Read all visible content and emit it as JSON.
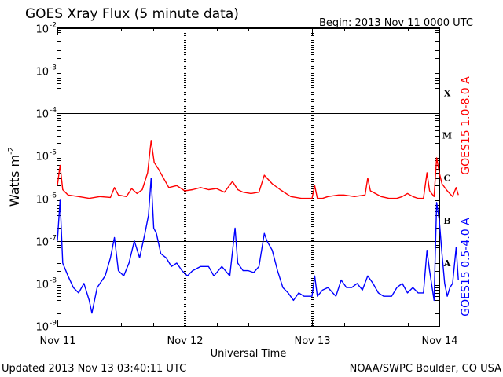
{
  "chart_data": {
    "type": "line",
    "title": "GOES Xray Flux (5 minute data)",
    "begin_label": "Begin:  2013 Nov 11 0000 UTC",
    "xlabel": "Universal Time",
    "ylabel": "Watts m",
    "ylabel_exp": "-2",
    "y_scale": "log",
    "ylim": [
      1e-09,
      0.01
    ],
    "xlim": [
      "2013-11-11 00:00",
      "2013-11-14 00:00"
    ],
    "x_ticks": [
      "Nov 11",
      "Nov 12",
      "Nov 13",
      "Nov 14"
    ],
    "y_ticks": [
      {
        "value": 1e-09,
        "base": "10",
        "exp": "-9"
      },
      {
        "value": 1e-08,
        "base": "10",
        "exp": "-8"
      },
      {
        "value": 1e-07,
        "base": "10",
        "exp": "-7"
      },
      {
        "value": 1e-06,
        "base": "10",
        "exp": "-6"
      },
      {
        "value": 1e-05,
        "base": "10",
        "exp": "-5"
      },
      {
        "value": 0.0001,
        "base": "10",
        "exp": "-4"
      },
      {
        "value": 0.001,
        "base": "10",
        "exp": "-3"
      },
      {
        "value": 0.01,
        "base": "10",
        "exp": "-2"
      }
    ],
    "flare_classes": [
      {
        "label": "A",
        "value": 3e-08
      },
      {
        "label": "B",
        "value": 3e-07
      },
      {
        "label": "C",
        "value": 3e-06
      },
      {
        "label": "M",
        "value": 3e-05
      },
      {
        "label": "X",
        "value": 0.0003
      }
    ],
    "grid": true,
    "series": [
      {
        "name": "GOES15 1.0-8.0 A",
        "color": "#ff0000",
        "points": [
          [
            "2013-11-11 00:00",
            2e-06
          ],
          [
            "2013-11-11 00:30",
            6e-06
          ],
          [
            "2013-11-11 01:00",
            1.6e-06
          ],
          [
            "2013-11-11 02:00",
            1.2e-06
          ],
          [
            "2013-11-11 04:00",
            1.1e-06
          ],
          [
            "2013-11-11 06:00",
            1e-06
          ],
          [
            "2013-11-11 08:00",
            1.1e-06
          ],
          [
            "2013-11-11 10:00",
            1.05e-06
          ],
          [
            "2013-11-11 10:45",
            1.8e-06
          ],
          [
            "2013-11-11 11:30",
            1.2e-06
          ],
          [
            "2013-11-11 13:00",
            1.1e-06
          ],
          [
            "2013-11-11 14:00",
            1.7e-06
          ],
          [
            "2013-11-11 15:00",
            1.3e-06
          ],
          [
            "2013-11-11 16:00",
            1.6e-06
          ],
          [
            "2013-11-11 17:00",
            4e-06
          ],
          [
            "2013-11-11 17:40",
            2.3e-05
          ],
          [
            "2013-11-11 18:15",
            7e-06
          ],
          [
            "2013-11-11 19:00",
            5e-06
          ],
          [
            "2013-11-11 20:00",
            3e-06
          ],
          [
            "2013-11-11 21:00",
            1.8e-06
          ],
          [
            "2013-11-11 22:30",
            2e-06
          ],
          [
            "2013-11-12 00:00",
            1.5e-06
          ],
          [
            "2013-11-12 01:30",
            1.6e-06
          ],
          [
            "2013-11-12 03:00",
            1.8e-06
          ],
          [
            "2013-11-12 04:30",
            1.6e-06
          ],
          [
            "2013-11-12 06:00",
            1.7e-06
          ],
          [
            "2013-11-12 07:30",
            1.4e-06
          ],
          [
            "2013-11-12 09:00",
            2.5e-06
          ],
          [
            "2013-11-12 10:00",
            1.6e-06
          ],
          [
            "2013-11-12 11:00",
            1.4e-06
          ],
          [
            "2013-11-12 12:30",
            1.3e-06
          ],
          [
            "2013-11-12 14:00",
            1.4e-06
          ],
          [
            "2013-11-12 15:00",
            3.5e-06
          ],
          [
            "2013-11-12 16:30",
            2.2e-06
          ],
          [
            "2013-11-12 18:00",
            1.6e-06
          ],
          [
            "2013-11-12 20:00",
            1.1e-06
          ],
          [
            "2013-11-12 22:00",
            1e-06
          ],
          [
            "2013-11-13 00:00",
            1e-06
          ],
          [
            "2013-11-13 00:30",
            2e-06
          ],
          [
            "2013-11-13 01:00",
            1e-06
          ],
          [
            "2013-11-13 02:00",
            1e-06
          ],
          [
            "2013-11-13 03:00",
            1.1e-06
          ],
          [
            "2013-11-13 05:00",
            1.2e-06
          ],
          [
            "2013-11-13 06:00",
            1.2e-06
          ],
          [
            "2013-11-13 08:00",
            1.1e-06
          ],
          [
            "2013-11-13 10:00",
            1.2e-06
          ],
          [
            "2013-11-13 10:30",
            3e-06
          ],
          [
            "2013-11-13 11:00",
            1.5e-06
          ],
          [
            "2013-11-13 13:00",
            1.1e-06
          ],
          [
            "2013-11-13 14:30",
            1e-06
          ],
          [
            "2013-11-13 16:00",
            1e-06
          ],
          [
            "2013-11-13 17:00",
            1.1e-06
          ],
          [
            "2013-11-13 18:00",
            1.3e-06
          ],
          [
            "2013-11-13 19:00",
            1.1e-06
          ],
          [
            "2013-11-13 20:00",
            1e-06
          ],
          [
            "2013-11-13 21:00",
            1e-06
          ],
          [
            "2013-11-13 21:40",
            4e-06
          ],
          [
            "2013-11-13 22:10",
            1.5e-06
          ],
          [
            "2013-11-13 23:00",
            1.1e-06
          ],
          [
            "2013-11-13 23:30",
            9e-06
          ],
          [
            "2013-11-14 00:00",
            4e-06
          ],
          [
            "2013-11-14 00:30",
            2.2e-06
          ],
          [
            "2013-11-14 01:30",
            1.5e-06
          ],
          [
            "2013-11-14 02:30",
            1.1e-06
          ],
          [
            "2013-11-14 03:10",
            1.8e-06
          ],
          [
            "2013-11-14 03:35",
            1.2e-06
          ]
        ]
      },
      {
        "name": "GOES15 0.5-4.0 A",
        "color": "#0000ff",
        "points": [
          [
            "2013-11-11 00:00",
            1e-07
          ],
          [
            "2013-11-11 00:30",
            9e-07
          ],
          [
            "2013-11-11 01:00",
            3e-08
          ],
          [
            "2013-11-11 02:00",
            1.5e-08
          ],
          [
            "2013-11-11 03:00",
            8e-09
          ],
          [
            "2013-11-11 04:00",
            6e-09
          ],
          [
            "2013-11-11 05:00",
            1e-08
          ],
          [
            "2013-11-11 06:00",
            4e-09
          ],
          [
            "2013-11-11 06:30",
            2e-09
          ],
          [
            "2013-11-11 07:30",
            8e-09
          ],
          [
            "2013-11-11 09:00",
            1.5e-08
          ],
          [
            "2013-11-11 10:00",
            4e-08
          ],
          [
            "2013-11-11 10:45",
            1.2e-07
          ],
          [
            "2013-11-11 11:30",
            2e-08
          ],
          [
            "2013-11-11 12:30",
            1.5e-08
          ],
          [
            "2013-11-11 13:30",
            3e-08
          ],
          [
            "2013-11-11 14:30",
            1e-07
          ],
          [
            "2013-11-11 15:30",
            4e-08
          ],
          [
            "2013-11-11 16:30",
            1.5e-07
          ],
          [
            "2013-11-11 17:10",
            4e-07
          ],
          [
            "2013-11-11 17:40",
            3e-06
          ],
          [
            "2013-11-11 18:10",
            2e-07
          ],
          [
            "2013-11-11 18:40",
            1.5e-07
          ],
          [
            "2013-11-11 19:30",
            5e-08
          ],
          [
            "2013-11-11 20:30",
            4e-08
          ],
          [
            "2013-11-11 21:30",
            2.5e-08
          ],
          [
            "2013-11-11 22:30",
            3e-08
          ],
          [
            "2013-11-11 23:30",
            2e-08
          ],
          [
            "2013-11-12 00:30",
            1.5e-08
          ],
          [
            "2013-11-12 01:30",
            2e-08
          ],
          [
            "2013-11-12 03:00",
            2.5e-08
          ],
          [
            "2013-11-12 04:30",
            2.5e-08
          ],
          [
            "2013-11-12 05:30",
            1.5e-08
          ],
          [
            "2013-11-12 07:00",
            2.5e-08
          ],
          [
            "2013-11-12 08:30",
            1.5e-08
          ],
          [
            "2013-11-12 09:30",
            2e-07
          ],
          [
            "2013-11-12 10:00",
            3e-08
          ],
          [
            "2013-11-12 11:00",
            2e-08
          ],
          [
            "2013-11-12 12:00",
            2e-08
          ],
          [
            "2013-11-12 13:00",
            1.8e-08
          ],
          [
            "2013-11-12 14:00",
            2.5e-08
          ],
          [
            "2013-11-12 15:00",
            1.5e-07
          ],
          [
            "2013-11-12 15:30",
            1e-07
          ],
          [
            "2013-11-12 16:30",
            6e-08
          ],
          [
            "2013-11-12 17:30",
            2e-08
          ],
          [
            "2013-11-12 18:30",
            8e-09
          ],
          [
            "2013-11-12 19:30",
            6e-09
          ],
          [
            "2013-11-12 20:30",
            4e-09
          ],
          [
            "2013-11-12 21:30",
            6e-09
          ],
          [
            "2013-11-12 22:30",
            5e-09
          ],
          [
            "2013-11-13 00:00",
            5e-09
          ],
          [
            "2013-11-13 00:30",
            1.5e-08
          ],
          [
            "2013-11-13 01:00",
            5e-09
          ],
          [
            "2013-11-13 02:00",
            7e-09
          ],
          [
            "2013-11-13 03:00",
            8e-09
          ],
          [
            "2013-11-13 04:30",
            5e-09
          ],
          [
            "2013-11-13 05:30",
            1.2e-08
          ],
          [
            "2013-11-13 06:30",
            8e-09
          ],
          [
            "2013-11-13 07:30",
            8e-09
          ],
          [
            "2013-11-13 08:30",
            1e-08
          ],
          [
            "2013-11-13 09:30",
            7e-09
          ],
          [
            "2013-11-13 10:30",
            1.5e-08
          ],
          [
            "2013-11-13 11:30",
            1e-08
          ],
          [
            "2013-11-13 12:30",
            6e-09
          ],
          [
            "2013-11-13 13:30",
            5e-09
          ],
          [
            "2013-11-13 15:00",
            5e-09
          ],
          [
            "2013-11-13 16:00",
            8e-09
          ],
          [
            "2013-11-13 17:00",
            1e-08
          ],
          [
            "2013-11-13 18:00",
            6e-09
          ],
          [
            "2013-11-13 19:00",
            8e-09
          ],
          [
            "2013-11-13 20:00",
            6e-09
          ],
          [
            "2013-11-13 21:00",
            6e-09
          ],
          [
            "2013-11-13 21:40",
            6e-08
          ],
          [
            "2013-11-13 22:10",
            2e-08
          ],
          [
            "2013-11-13 23:00",
            4e-09
          ],
          [
            "2013-11-13 23:30",
            8e-07
          ],
          [
            "2013-11-14 00:00",
            3e-07
          ],
          [
            "2013-11-14 00:30",
            5e-08
          ],
          [
            "2013-11-14 01:00",
            1e-08
          ],
          [
            "2013-11-14 01:30",
            5e-09
          ],
          [
            "2013-11-14 02:00",
            8e-09
          ],
          [
            "2013-11-14 02:30",
            1e-08
          ],
          [
            "2013-11-14 03:10",
            7e-08
          ],
          [
            "2013-11-14 03:35",
            1.2e-08
          ]
        ]
      }
    ]
  },
  "footer": {
    "updated": "Updated 2013 Nov 13 03:40:11 UTC",
    "credit": "NOAA/SWPC Boulder, CO USA"
  }
}
